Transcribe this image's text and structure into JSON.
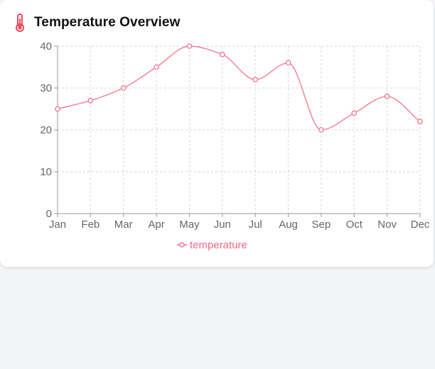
{
  "card": {
    "title": "Temperature Overview",
    "icon": "thermometer-icon"
  },
  "colors": {
    "series": "#f06a85",
    "grid": "#d6d6d6",
    "axis": "#999999",
    "tick_text": "#666666",
    "icon": "#e8485f"
  },
  "chart_data": {
    "type": "line",
    "categories": [
      "Jan",
      "Feb",
      "Mar",
      "Apr",
      "May",
      "Jun",
      "Jul",
      "Aug",
      "Sep",
      "Oct",
      "Nov",
      "Dec"
    ],
    "series": [
      {
        "name": "temperature",
        "values": [
          25,
          27,
          30,
          35,
          40,
          38,
          32,
          36,
          20,
          24,
          28,
          22
        ]
      }
    ],
    "ylim": [
      0,
      40
    ],
    "yticks": [
      0,
      10,
      20,
      30,
      40
    ],
    "grid": true,
    "grid_style": "dashed",
    "curve": "smooth",
    "markers": "hollow-circle",
    "legend_position": "bottom-center"
  }
}
